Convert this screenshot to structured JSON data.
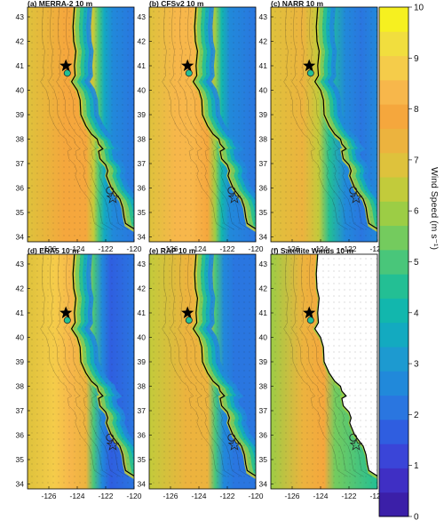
{
  "chart_data": {
    "type": "heatmap",
    "colorbar": {
      "label": "Wind Speed (m s⁻¹)",
      "min": 0,
      "max": 10,
      "ticks": [
        "0",
        "1",
        "2",
        "3",
        "4",
        "5",
        "6",
        "7",
        "8",
        "9",
        "10"
      ],
      "colors": [
        "#3b1fa8",
        "#3f2fc4",
        "#3a45d8",
        "#2f5ee0",
        "#2a76e0",
        "#2189da",
        "#1d9ad0",
        "#13aac0",
        "#12b7ad",
        "#23bf94",
        "#49c67a",
        "#74cb5e",
        "#9ccd45",
        "#c2cb3b",
        "#dec23c",
        "#ecb33e",
        "#f5a73d",
        "#f7b74b",
        "#f5cc4a",
        "#f1de3e",
        "#f6f020"
      ]
    },
    "axes": {
      "xticks": [
        "-126",
        "-124",
        "-122",
        "-120"
      ],
      "yticks": [
        "43",
        "42",
        "41",
        "40",
        "39",
        "38",
        "37",
        "36",
        "35",
        "34"
      ],
      "xlim": [
        -127.5,
        -120
      ],
      "ylim": [
        33.8,
        43.4
      ]
    },
    "panels": [
      {
        "title": "(a)    MERRA-2 10 m"
      },
      {
        "title": "(b)    CFSv2 10 m"
      },
      {
        "title": "(c)    NARR 10 m"
      },
      {
        "title": "(d)    ERA5 10 m"
      },
      {
        "title": "(e)    RAP 10 m"
      },
      {
        "title": "(f)    Satellite Winds 10 m"
      }
    ],
    "markers": {
      "star_filled": {
        "lon": -124.8,
        "lat": 41.0
      },
      "circle_filled": {
        "lon": -124.7,
        "lat": 40.7
      },
      "circle_open": {
        "lon": -121.7,
        "lat": 35.9
      },
      "star_open": {
        "lon": -121.5,
        "lat": 35.6
      }
    }
  }
}
